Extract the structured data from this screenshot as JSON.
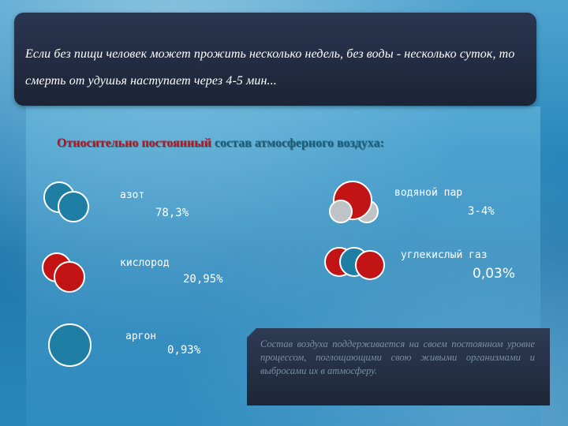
{
  "intro": "Если без пищи человек может прожить несколько недель, без воды - несколько суток, то смерть от удушья наступает через 4-5 мин...",
  "heading": {
    "part1": "Относительно постоянный",
    "part2": " состав атмосферного воздуха:"
  },
  "components": [
    {
      "label": "азот",
      "value": "78,3%",
      "icon": "nitrogen-molecule-icon"
    },
    {
      "label": "кислород",
      "value": "20,95%",
      "icon": "oxygen-molecule-icon"
    },
    {
      "label": "аргон",
      "value": "0,93%",
      "icon": "argon-atom-icon"
    },
    {
      "label": "водяной пар",
      "value": "3-4%",
      "icon": "water-molecule-icon"
    },
    {
      "label": "углекислый газ",
      "value": "0,03%",
      "icon": "carbon-dioxide-molecule-icon"
    }
  ],
  "note": "Состав воздуха поддерживается на своем постоянном уровне процессом, поглощающими свою живыми организмами и выбросами их в атмосферу.",
  "colors": {
    "nitrogen": "#1f7ea3",
    "oxygen": "#c21414",
    "hydrogen": "#bfc3c6",
    "banner": "#1c2436"
  }
}
